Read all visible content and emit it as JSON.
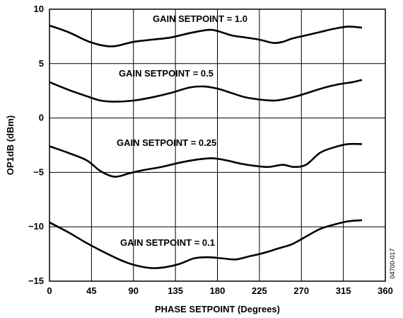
{
  "chart_data": {
    "type": "line",
    "title": "",
    "xlabel": "PHASE SETPOINT (Degrees)",
    "ylabel": "OP1dB (dBm)",
    "xlim": [
      0,
      360
    ],
    "ylim": [
      -15,
      10
    ],
    "x_ticks": [
      0,
      45,
      90,
      135,
      180,
      225,
      270,
      315,
      360
    ],
    "y_ticks": [
      -15,
      -10,
      -5,
      0,
      5,
      10
    ],
    "x_tick_labels": [
      "0",
      "45",
      "90",
      "135",
      "180",
      "225",
      "270",
      "315",
      "360"
    ],
    "y_tick_labels": [
      "−15",
      "−10",
      "−5",
      "0",
      "5",
      "10"
    ],
    "grid": true,
    "line_color": "#000000",
    "figure_id": "04700-017",
    "series": [
      {
        "annotation": "GAIN SETPOINT = 1.0",
        "x": [
          0,
          20,
          40,
          55,
          70,
          90,
          110,
          130,
          150,
          170,
          180,
          195,
          210,
          225,
          240,
          250,
          260,
          275,
          290,
          305,
          320,
          335
        ],
        "y": [
          8.5,
          7.9,
          7.1,
          6.7,
          6.6,
          7.0,
          7.2,
          7.4,
          7.8,
          8.1,
          8.0,
          7.6,
          7.4,
          7.2,
          6.9,
          7.0,
          7.3,
          7.6,
          7.9,
          8.2,
          8.4,
          8.3
        ]
      },
      {
        "annotation": "GAIN SETPOINT = 0.5",
        "x": [
          0,
          20,
          40,
          55,
          70,
          90,
          110,
          130,
          150,
          165,
          180,
          195,
          210,
          225,
          240,
          250,
          265,
          280,
          295,
          310,
          325,
          335
        ],
        "y": [
          3.3,
          2.6,
          2.0,
          1.6,
          1.5,
          1.6,
          1.9,
          2.3,
          2.8,
          2.9,
          2.7,
          2.3,
          1.9,
          1.7,
          1.6,
          1.7,
          2.0,
          2.4,
          2.8,
          3.1,
          3.3,
          3.5
        ]
      },
      {
        "annotation": "GAIN SETPOINT = 0.25",
        "x": [
          0,
          20,
          40,
          55,
          70,
          85,
          100,
          120,
          140,
          160,
          175,
          190,
          205,
          220,
          235,
          250,
          262,
          275,
          290,
          305,
          320,
          335
        ],
        "y": [
          -2.6,
          -3.2,
          -3.9,
          -4.9,
          -5.4,
          -5.1,
          -4.8,
          -4.5,
          -4.1,
          -3.8,
          -3.7,
          -3.9,
          -4.2,
          -4.4,
          -4.5,
          -4.3,
          -4.5,
          -4.3,
          -3.2,
          -2.7,
          -2.4,
          -2.4
        ]
      },
      {
        "annotation": "GAIN SETPOINT = 0.1",
        "x": [
          0,
          20,
          40,
          60,
          80,
          95,
          110,
          125,
          140,
          155,
          170,
          185,
          200,
          215,
          230,
          245,
          260,
          275,
          290,
          305,
          320,
          335
        ],
        "y": [
          -9.6,
          -10.5,
          -11.5,
          -12.4,
          -13.2,
          -13.6,
          -13.8,
          -13.7,
          -13.4,
          -12.9,
          -12.8,
          -12.9,
          -13.0,
          -12.7,
          -12.4,
          -12.0,
          -11.6,
          -10.9,
          -10.2,
          -9.8,
          -9.5,
          -9.4
        ]
      }
    ]
  }
}
